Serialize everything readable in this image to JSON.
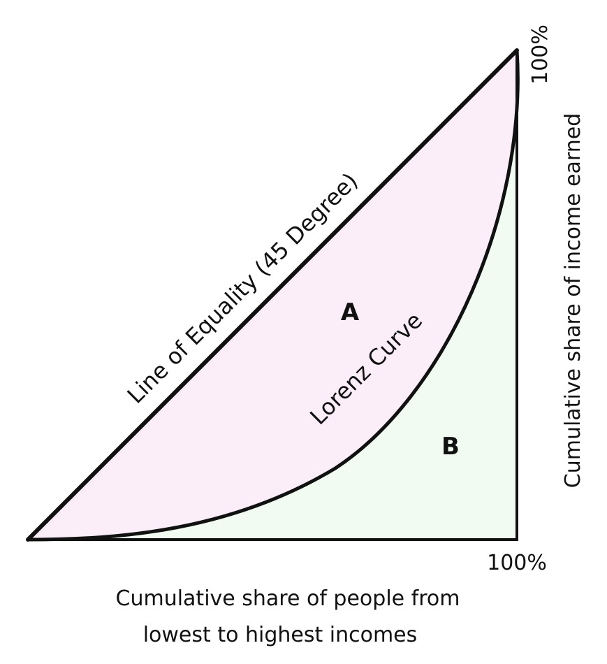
{
  "diagram": {
    "equality_line_label": "Line of Equality (45 Degree)",
    "lorenz_curve_label": "Lorenz Curve",
    "region_a_label": "A",
    "region_b_label": "B",
    "x_end_label": "100%",
    "y_end_label": "100%",
    "x_axis_label_line1": "Cumulative share of people from",
    "x_axis_label_line2": "lowest to highest incomes",
    "y_axis_label": "Cumulative share of income earned",
    "colors": {
      "region_a_fill": "#fbeef9",
      "region_b_fill": "#f1fbf1",
      "lines": "#111111"
    }
  }
}
